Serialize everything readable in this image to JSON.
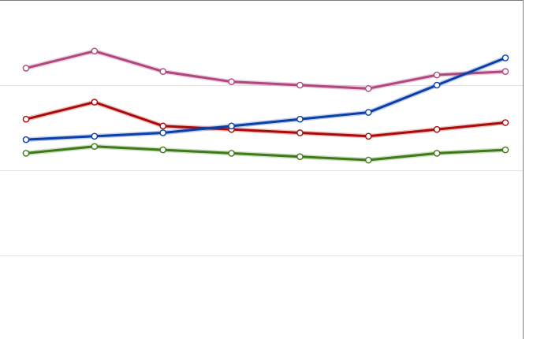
{
  "chart_data": {
    "type": "line",
    "title": "",
    "xlabel": "",
    "ylabel": "",
    "x": [
      1,
      2,
      3,
      4,
      5,
      6,
      7,
      8
    ],
    "ylim": [
      0,
      100
    ],
    "grid": true,
    "legend": "none",
    "series": [
      {
        "color": "#b0487e",
        "values": [
          80,
          85,
          79,
          76,
          75,
          74,
          78,
          79
        ]
      },
      {
        "color": "#aa0a0a",
        "values": [
          65,
          70,
          63,
          62,
          61,
          60,
          62,
          64
        ]
      },
      {
        "color": "#0a3ea8",
        "values": [
          59,
          60,
          61,
          63,
          65,
          67,
          75,
          83
        ]
      },
      {
        "color": "#3e7a17",
        "values": [
          55,
          57,
          56,
          55,
          54,
          53,
          55,
          56
        ]
      }
    ]
  }
}
